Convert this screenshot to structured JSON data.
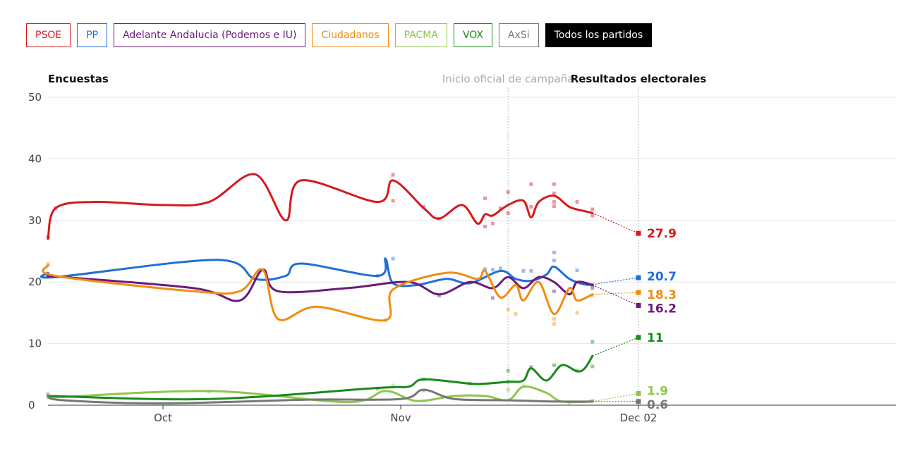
{
  "buttons": [
    {
      "label": "PSOE",
      "color": "#d7191c",
      "active": false
    },
    {
      "label": "PP",
      "color": "#1f6fd6",
      "active": false
    },
    {
      "label": "Adelante Andalucia (Podemos e IU)",
      "color": "#6a1a7a",
      "active": false
    },
    {
      "label": "Ciudadanos",
      "color": "#f28c0f",
      "active": false
    },
    {
      "label": "PACMA",
      "color": "#8ec64c",
      "active": false
    },
    {
      "label": "VOX",
      "color": "#1a8a1a",
      "active": false
    },
    {
      "label": "AxSi",
      "color": "#777777",
      "active": false
    },
    {
      "label": "Todos los partidos",
      "color": "#000000",
      "active": true
    }
  ],
  "chart_data": {
    "type": "line",
    "title_left": "Encuestas",
    "title_center": "Inicio oficial de campaña",
    "title_right": "Resultados electorales",
    "xlabel": "",
    "ylabel": "",
    "x_axis": "date",
    "x_ticks": [
      {
        "date": "2018-10-01",
        "label": "Oct"
      },
      {
        "date": "2018-11-01",
        "label": "Nov"
      },
      {
        "date": "2018-12-02",
        "label": "Dec 02"
      }
    ],
    "ylim": [
      0,
      50
    ],
    "y_ticks": [
      0,
      10,
      20,
      30,
      40,
      50
    ],
    "grid": true,
    "campaign_start": "2018-11-15",
    "election_date": "2018-12-02",
    "series": [
      {
        "name": "PSOE",
        "color": "#d7191c",
        "result": 27.9,
        "trend": [
          [
            "2018-09-16",
            27
          ],
          [
            "2018-09-17",
            32
          ],
          [
            "2018-09-22",
            33
          ],
          [
            "2018-10-01",
            32.5
          ],
          [
            "2018-10-07",
            33
          ],
          [
            "2018-10-13",
            37.5
          ],
          [
            "2018-10-17",
            30
          ],
          [
            "2018-10-19",
            36.5
          ],
          [
            "2018-10-29",
            33
          ],
          [
            "2018-10-31",
            36.5
          ],
          [
            "2018-11-04",
            32
          ],
          [
            "2018-11-06",
            30.3
          ],
          [
            "2018-11-09",
            32.5
          ],
          [
            "2018-11-11",
            29.5
          ],
          [
            "2018-11-12",
            31
          ],
          [
            "2018-11-13",
            30.8
          ],
          [
            "2018-11-15",
            32.5
          ],
          [
            "2018-11-17",
            33.2
          ],
          [
            "2018-11-18",
            30.5
          ],
          [
            "2018-11-19",
            33
          ],
          [
            "2018-11-21",
            34
          ],
          [
            "2018-11-23",
            32.2
          ],
          [
            "2018-11-25",
            31.5
          ],
          [
            "2018-11-26",
            31.2
          ]
        ],
        "polls": [
          [
            "2018-09-16",
            27.3
          ],
          [
            "2018-09-17",
            32
          ],
          [
            "2018-10-31",
            37.4
          ],
          [
            "2018-10-31",
            33.2
          ],
          [
            "2018-11-04",
            32.2
          ],
          [
            "2018-11-06",
            30.3
          ],
          [
            "2018-11-12",
            33.6
          ],
          [
            "2018-11-12",
            29
          ],
          [
            "2018-11-13",
            29.5
          ],
          [
            "2018-11-14",
            32
          ],
          [
            "2018-11-15",
            34.6
          ],
          [
            "2018-11-15",
            31.2
          ],
          [
            "2018-11-18",
            35.9
          ],
          [
            "2018-11-18",
            32.2
          ],
          [
            "2018-11-21",
            35.9
          ],
          [
            "2018-11-21",
            34.4
          ],
          [
            "2018-11-21",
            33
          ],
          [
            "2018-11-21",
            32.3
          ],
          [
            "2018-11-24",
            33
          ],
          [
            "2018-11-26",
            30.8
          ],
          [
            "2018-11-26",
            31.8
          ]
        ]
      },
      {
        "name": "PP",
        "color": "#1f6fd6",
        "result": 20.7,
        "trend": [
          [
            "2018-09-16",
            21.5
          ],
          [
            "2018-09-17",
            20.8
          ],
          [
            "2018-10-08",
            23.6
          ],
          [
            "2018-10-13",
            20.5
          ],
          [
            "2018-10-17",
            21
          ],
          [
            "2018-10-19",
            23
          ],
          [
            "2018-10-29",
            21
          ],
          [
            "2018-10-30",
            23.8
          ],
          [
            "2018-10-31",
            19.8
          ],
          [
            "2018-11-03",
            19.5
          ],
          [
            "2018-11-07",
            20.5
          ],
          [
            "2018-11-10",
            19.8
          ],
          [
            "2018-11-14",
            21.8
          ],
          [
            "2018-11-16",
            20.5
          ],
          [
            "2018-11-18",
            20.2
          ],
          [
            "2018-11-20",
            21.2
          ],
          [
            "2018-11-21",
            22.5
          ],
          [
            "2018-11-23",
            20.5
          ],
          [
            "2018-11-25",
            19.6
          ],
          [
            "2018-11-26",
            19.6
          ]
        ],
        "polls": [
          [
            "2018-09-16",
            21.2
          ],
          [
            "2018-10-29",
            21
          ],
          [
            "2018-10-31",
            23.8
          ],
          [
            "2018-11-12",
            22.1
          ],
          [
            "2018-11-13",
            22
          ],
          [
            "2018-11-14",
            22.2
          ],
          [
            "2018-11-17",
            21.8
          ],
          [
            "2018-11-18",
            21.8
          ],
          [
            "2018-11-21",
            24.8
          ],
          [
            "2018-11-21",
            23.5
          ],
          [
            "2018-11-24",
            21.9
          ],
          [
            "2018-11-26",
            19.5
          ]
        ]
      },
      {
        "name": "Adelante Andalucia (Podemos e IU)",
        "color": "#6a1a7a",
        "result": 16.2,
        "trend": [
          [
            "2018-09-16",
            21
          ],
          [
            "2018-10-05",
            19
          ],
          [
            "2018-10-11",
            17
          ],
          [
            "2018-10-14",
            22
          ],
          [
            "2018-10-16",
            18.5
          ],
          [
            "2018-10-25",
            19
          ],
          [
            "2018-11-02",
            20
          ],
          [
            "2018-11-06",
            18
          ],
          [
            "2018-11-10",
            20
          ],
          [
            "2018-11-13",
            19
          ],
          [
            "2018-11-15",
            20.8
          ],
          [
            "2018-11-17",
            19
          ],
          [
            "2018-11-19",
            20.8
          ],
          [
            "2018-11-21",
            20
          ],
          [
            "2018-11-23",
            18
          ],
          [
            "2018-11-24",
            20
          ],
          [
            "2018-11-26",
            19.5
          ]
        ],
        "polls": [
          [
            "2018-09-16",
            21
          ],
          [
            "2018-11-06",
            17.8
          ],
          [
            "2018-11-13",
            17.4
          ],
          [
            "2018-11-21",
            18.5
          ],
          [
            "2018-11-26",
            19
          ]
        ]
      },
      {
        "name": "Ciudadanos",
        "color": "#f28c0f",
        "result": 18.3,
        "trend": [
          [
            "2018-09-16",
            22.7
          ],
          [
            "2018-09-17",
            21
          ],
          [
            "2018-10-05",
            18.5
          ],
          [
            "2018-10-11",
            18.5
          ],
          [
            "2018-10-14",
            22
          ],
          [
            "2018-10-16",
            14
          ],
          [
            "2018-10-21",
            16
          ],
          [
            "2018-10-30",
            13.8
          ],
          [
            "2018-10-31",
            18.8
          ],
          [
            "2018-11-07",
            21.5
          ],
          [
            "2018-11-11",
            20.5
          ],
          [
            "2018-11-12",
            21.8
          ],
          [
            "2018-11-14",
            17.5
          ],
          [
            "2018-11-16",
            19.5
          ],
          [
            "2018-11-17",
            17
          ],
          [
            "2018-11-19",
            20
          ],
          [
            "2018-11-21",
            14.8
          ],
          [
            "2018-11-23",
            19
          ],
          [
            "2018-11-24",
            17
          ],
          [
            "2018-11-26",
            18
          ]
        ],
        "polls": [
          [
            "2018-09-16",
            22.9
          ],
          [
            "2018-10-30",
            13.8
          ],
          [
            "2018-11-15",
            15.5
          ],
          [
            "2018-11-16",
            14.8
          ],
          [
            "2018-11-21",
            13.2
          ],
          [
            "2018-11-21",
            14
          ],
          [
            "2018-11-24",
            15
          ],
          [
            "2018-11-26",
            17.8
          ]
        ]
      },
      {
        "name": "PACMA",
        "color": "#8ec64c",
        "result": 1.9,
        "trend": [
          [
            "2018-09-16",
            1.2
          ],
          [
            "2018-10-07",
            2.3
          ],
          [
            "2018-10-25",
            0.5
          ],
          [
            "2018-10-30",
            2.3
          ],
          [
            "2018-11-03",
            0.7
          ],
          [
            "2018-11-08",
            1.5
          ],
          [
            "2018-11-12",
            1.5
          ],
          [
            "2018-11-15",
            0.8
          ],
          [
            "2018-11-17",
            3
          ],
          [
            "2018-11-20",
            2
          ],
          [
            "2018-11-22",
            0.6
          ],
          [
            "2018-11-26",
            0.6
          ]
        ],
        "polls": [
          [
            "2018-09-16",
            1.5
          ],
          [
            "2018-10-07",
            2.2
          ],
          [
            "2018-10-31",
            3.2
          ],
          [
            "2018-11-15",
            2.5
          ],
          [
            "2018-11-17",
            3.1
          ],
          [
            "2018-11-23",
            0.4
          ]
        ]
      },
      {
        "name": "VOX",
        "color": "#1a8a1a",
        "result": 11,
        "trend": [
          [
            "2018-09-16",
            1.5
          ],
          [
            "2018-10-07",
            1
          ],
          [
            "2018-10-29",
            2.8
          ],
          [
            "2018-11-02",
            3
          ],
          [
            "2018-11-04",
            4.2
          ],
          [
            "2018-11-10",
            3.5
          ],
          [
            "2018-11-12",
            3.5
          ],
          [
            "2018-11-15",
            3.8
          ],
          [
            "2018-11-17",
            4
          ],
          [
            "2018-11-18",
            6
          ],
          [
            "2018-11-20",
            4
          ],
          [
            "2018-11-22",
            6.5
          ],
          [
            "2018-11-24",
            5.5
          ],
          [
            "2018-11-25",
            6
          ],
          [
            "2018-11-26",
            8
          ]
        ],
        "polls": [
          [
            "2018-10-29",
            2.7
          ],
          [
            "2018-11-04",
            4.2
          ],
          [
            "2018-11-10",
            3.5
          ],
          [
            "2018-11-15",
            5.6
          ],
          [
            "2018-11-15",
            3.8
          ],
          [
            "2018-11-18",
            6.2
          ],
          [
            "2018-11-21",
            6.5
          ],
          [
            "2018-11-24",
            5.6
          ],
          [
            "2018-11-26",
            10.3
          ],
          [
            "2018-11-26",
            6.3
          ]
        ]
      },
      {
        "name": "AxSi",
        "color": "#777777",
        "result": 0.6,
        "trend": [
          [
            "2018-09-16",
            1.5
          ],
          [
            "2018-09-18",
            0.8
          ],
          [
            "2018-10-01",
            0.3
          ],
          [
            "2018-10-20",
            0.9
          ],
          [
            "2018-11-01",
            1.0
          ],
          [
            "2018-11-04",
            2.5
          ],
          [
            "2018-11-08",
            1.0
          ],
          [
            "2018-11-15",
            0.8
          ],
          [
            "2018-11-21",
            0.6
          ],
          [
            "2018-11-26",
            0.6
          ]
        ],
        "polls": [
          [
            "2018-09-16",
            1.8
          ],
          [
            "2018-11-04",
            2.4
          ],
          [
            "2018-11-26",
            0.7
          ]
        ]
      }
    ]
  }
}
